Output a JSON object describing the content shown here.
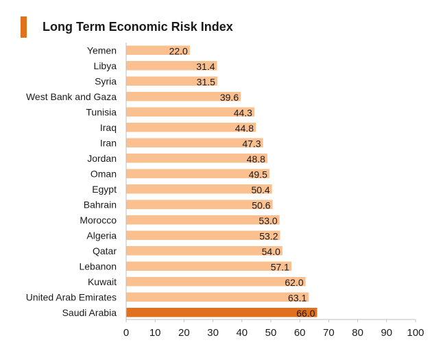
{
  "colors": {
    "accent": "#E2711D",
    "bar": "#FAC090",
    "highlight_bar": "#E2711D",
    "axis": "#bfbfbf"
  },
  "chart_data": {
    "type": "bar",
    "orientation": "horizontal",
    "title": "Long Term Economic Risk Index",
    "categories": [
      "Yemen",
      "Libya",
      "Syria",
      "West Bank and Gaza",
      "Tunisia",
      "Iraq",
      "Iran",
      "Jordan",
      "Oman",
      "Egypt",
      "Bahrain",
      "Morocco",
      "Algeria",
      "Qatar",
      "Lebanon",
      "Kuwait",
      "United Arab Emirates",
      "Saudi Arabia"
    ],
    "values": [
      22.0,
      31.4,
      31.5,
      39.6,
      44.3,
      44.8,
      47.3,
      48.8,
      49.5,
      50.4,
      50.6,
      53.0,
      53.2,
      54.0,
      57.1,
      62.0,
      63.1,
      66.0
    ],
    "data_labels": [
      "22.0",
      "31.4",
      "31.5",
      "39.6",
      "44.3",
      "44.8",
      "47.3",
      "48.8",
      "49.5",
      "50.4",
      "50.6",
      "53.0",
      "53.2",
      "54.0",
      "57.1",
      "62.0",
      "63.1",
      "66.0"
    ],
    "highlighted_category": "Saudi Arabia",
    "xlim": [
      0,
      100
    ],
    "xticks": [
      "0",
      "10",
      "20",
      "30",
      "40",
      "50",
      "60",
      "70",
      "80",
      "90",
      "100"
    ],
    "grid": false,
    "legend": "none"
  }
}
